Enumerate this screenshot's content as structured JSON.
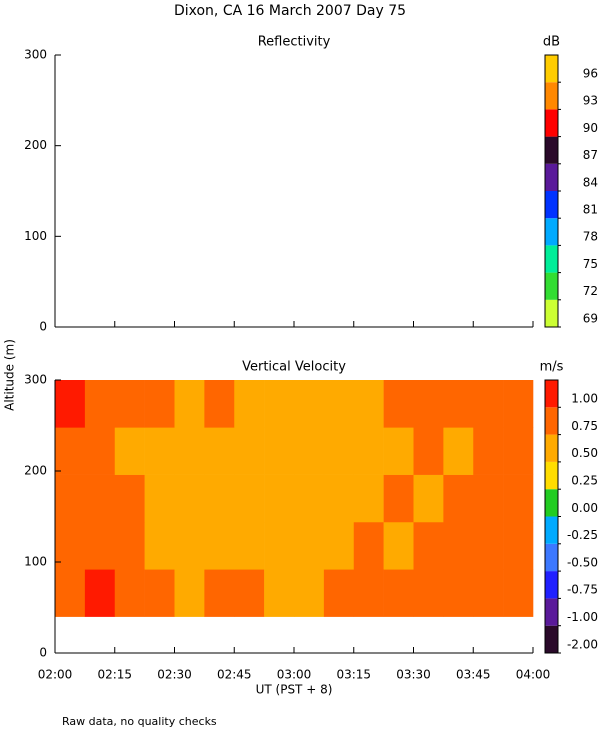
{
  "title": "Dixon, CA 16 March 2007  Day  75",
  "ylabel": "Altitude (m)",
  "footnote": "Raw data, no quality checks",
  "chart_data": [
    {
      "type": "heatmap",
      "title": "Reflectivity",
      "xlim": [
        2,
        4
      ],
      "xticks": [
        2,
        2.25,
        2.5,
        2.75,
        3,
        3.25,
        3.5,
        3.75,
        4
      ],
      "ylim": [
        0,
        300
      ],
      "yticks": [
        0,
        100,
        200,
        300
      ],
      "colorbar": {
        "unit": "dB",
        "ticks": [
          69,
          72,
          75,
          78,
          81,
          84,
          87,
          90,
          93,
          96
        ],
        "colors": [
          "#ccff33",
          "#33dd33",
          "#00ee99",
          "#00aaff",
          "#0033ff",
          "#5a1a9a",
          "#2a0a2a",
          "#ff0000",
          "#ff8800",
          "#ffcc00"
        ]
      }
    },
    {
      "type": "heatmap",
      "title": "Vertical Velocity",
      "xlabel": "UT  (PST + 8)",
      "xlim": [
        2,
        4
      ],
      "xticks": [
        {
          "value": 2,
          "label": "02:00"
        },
        {
          "value": 2.25,
          "label": "02:15"
        },
        {
          "value": 2.5,
          "label": "02:30"
        },
        {
          "value": 2.75,
          "label": "02:45"
        },
        {
          "value": 3,
          "label": "03:00"
        },
        {
          "value": 3.25,
          "label": "03:15"
        },
        {
          "value": 3.5,
          "label": "03:30"
        },
        {
          "value": 3.75,
          "label": "03:45"
        },
        {
          "value": 4,
          "label": "04:00"
        }
      ],
      "ylim": [
        0,
        300
      ],
      "yticks": [
        0,
        100,
        200,
        300
      ],
      "x_bins": [
        2,
        2.125,
        2.25,
        2.375,
        2.5,
        2.625,
        2.75,
        2.875,
        3,
        3.125,
        3.25,
        3.375,
        3.5,
        3.625,
        3.75,
        3.875,
        4
      ],
      "y_bins": [
        40,
        92,
        144,
        196,
        248,
        300
      ],
      "values": [
        [
          0.9,
          1.05,
          0.85,
          0.8,
          0.7,
          0.8,
          0.75,
          0.65,
          0.7,
          0.75,
          0.85,
          0.8,
          0.9,
          0.85,
          0.8,
          0.95
        ],
        [
          0.85,
          0.9,
          0.8,
          0.7,
          0.65,
          0.6,
          0.7,
          0.55,
          0.6,
          0.7,
          0.8,
          0.7,
          0.8,
          0.75,
          0.85,
          0.9
        ],
        [
          0.95,
          0.85,
          0.75,
          0.7,
          0.6,
          0.55,
          0.6,
          0.5,
          0.55,
          0.65,
          0.7,
          0.8,
          0.7,
          0.75,
          0.8,
          0.85
        ],
        [
          0.9,
          0.8,
          0.7,
          0.65,
          0.6,
          0.7,
          0.55,
          0.5,
          0.6,
          0.65,
          0.6,
          0.7,
          0.75,
          0.7,
          0.85,
          0.8
        ],
        [
          1.05,
          0.9,
          0.8,
          0.75,
          0.7,
          0.8,
          0.65,
          0.6,
          0.55,
          0.6,
          0.7,
          0.8,
          0.75,
          0.85,
          0.8,
          0.95
        ]
      ],
      "colorbar": {
        "unit": "m/s",
        "ticks": [
          {
            "value": -2,
            "label": "-2.00"
          },
          {
            "value": -1,
            "label": "-1.00"
          },
          {
            "value": -0.75,
            "label": "-0.75"
          },
          {
            "value": -0.5,
            "label": "-0.50"
          },
          {
            "value": -0.25,
            "label": "-0.25"
          },
          {
            "value": 0,
            "label": "0.00"
          },
          {
            "value": 0.25,
            "label": "0.25"
          },
          {
            "value": 0.5,
            "label": "0.50"
          },
          {
            "value": 0.75,
            "label": "0.75"
          },
          {
            "value": 1,
            "label": "1.00"
          }
        ],
        "colors": [
          "#2a0a2a",
          "#5a1a9a",
          "#2020ff",
          "#3c78ff",
          "#00aaff",
          "#22cc22",
          "#ffdd00",
          "#ffaa00",
          "#ff6600",
          "#ff1a00"
        ]
      }
    }
  ]
}
